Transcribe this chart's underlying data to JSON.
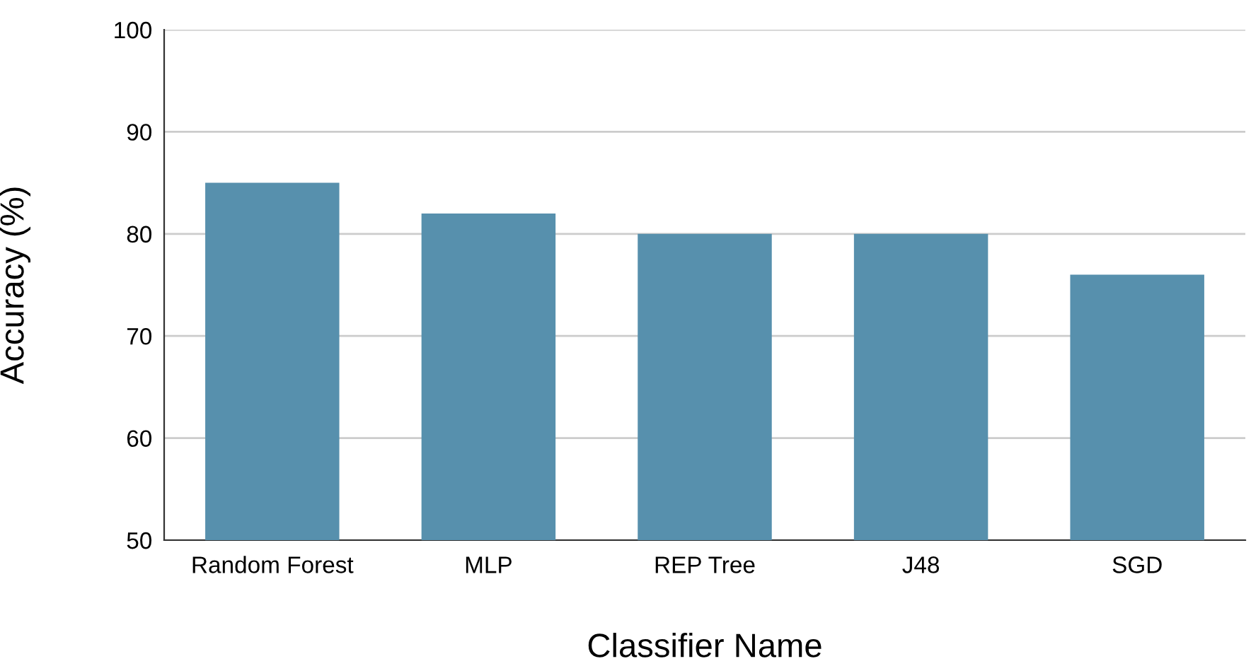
{
  "chart_data": {
    "type": "bar",
    "xlabel": "Classifier Name",
    "ylabel": "Accuracy (%)",
    "categories": [
      "Random Forest",
      "MLP",
      "REP Tree",
      "J48",
      "SGD"
    ],
    "values": [
      85,
      82,
      80,
      80,
      76
    ],
    "color": "#5790ad",
    "ylim": [
      50,
      100
    ],
    "yticks": [
      50,
      60,
      70,
      80,
      90,
      100
    ],
    "grid": "y",
    "legend": false
  }
}
